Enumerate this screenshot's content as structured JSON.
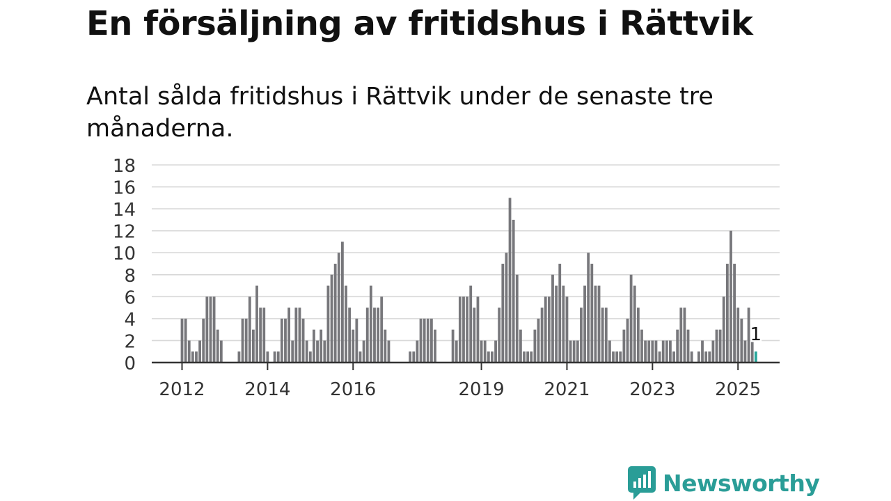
{
  "title": "En försäljning av fritidshus i Rättvik",
  "subtitle": "Antal sålda fritidshus i Rättvik under de senaste tre månaderna.",
  "brand": {
    "name": "Newsworthy",
    "color": "#2a9d97",
    "icon": "newsworthy-logo-icon"
  },
  "colors": {
    "bar": "#77777b",
    "highlight": "#26a69a",
    "grid": "#d8d8d8",
    "axis": "#333333"
  },
  "chart_data": {
    "type": "bar",
    "xlabel": "",
    "ylabel": "",
    "ylim": [
      0,
      18
    ],
    "yticks": [
      0,
      2,
      4,
      6,
      8,
      10,
      12,
      14,
      16,
      18
    ],
    "x_tick_labels": [
      "2012",
      "2014",
      "2016",
      "2019",
      "2021",
      "2023",
      "2025"
    ],
    "grid": "horizontal",
    "start": "2012-01",
    "end": "2025-04",
    "highlight_value_label": "1",
    "series": [
      {
        "values": [
          4,
          4,
          2,
          1,
          1,
          2,
          4,
          6,
          6,
          6,
          3,
          2,
          null,
          null,
          null,
          null,
          1,
          4,
          4,
          6,
          3,
          7,
          5,
          5,
          1,
          null,
          1,
          1,
          4,
          4,
          5,
          2,
          5,
          5,
          4,
          2,
          1,
          3,
          2,
          3,
          2,
          7,
          8,
          9,
          10,
          11,
          7,
          5,
          3,
          4,
          1,
          2,
          5,
          7,
          5,
          5,
          6,
          3,
          2,
          null,
          null,
          null,
          null,
          null,
          1,
          1,
          2,
          4,
          4,
          4,
          4,
          3,
          null,
          null,
          null,
          null,
          3,
          2,
          6,
          6,
          6,
          7,
          5,
          6,
          2,
          2,
          1,
          1,
          2,
          5,
          9,
          10,
          15,
          13,
          8,
          3,
          1,
          1,
          1,
          3,
          4,
          5,
          6,
          6,
          8,
          7,
          9,
          7,
          6,
          2,
          2,
          2,
          5,
          7,
          10,
          9,
          7,
          7,
          5,
          5,
          2,
          1,
          1,
          1,
          3,
          4,
          8,
          7,
          5,
          3,
          2,
          2,
          2,
          2,
          1,
          2,
          2,
          2,
          1,
          3,
          5,
          5,
          3,
          1,
          null,
          1,
          2,
          1,
          1,
          2,
          3,
          3,
          6,
          9,
          12,
          9,
          5,
          4,
          2,
          5,
          2,
          1
        ]
      }
    ]
  }
}
